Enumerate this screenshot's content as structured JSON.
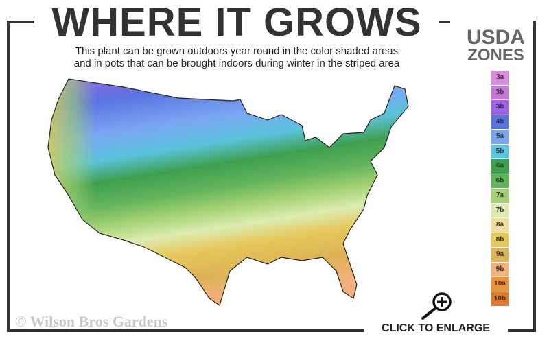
{
  "header": {
    "title": "WHERE IT GROWS",
    "subtitle_line1": "This plant can be grown outdoors year round in the color shaded areas",
    "subtitle_line2": "and in pots that can be brought indoors during winter in the striped area"
  },
  "legend": {
    "title_line1": "USDA",
    "title_line2": "ZONES",
    "zones": [
      {
        "label": "3a",
        "color": "#d98ae0"
      },
      {
        "label": "3b",
        "color": "#c777d6"
      },
      {
        "label": "3b",
        "color": "#9d63e8"
      },
      {
        "label": "4b",
        "color": "#5b74e0"
      },
      {
        "label": "5a",
        "color": "#79a6f2"
      },
      {
        "label": "5b",
        "color": "#5cc3de"
      },
      {
        "label": "6a",
        "color": "#3ea04e"
      },
      {
        "label": "6b",
        "color": "#62b45a"
      },
      {
        "label": "7a",
        "color": "#a3d172"
      },
      {
        "label": "7b",
        "color": "#dcecb0"
      },
      {
        "label": "8a",
        "color": "#efe0a0"
      },
      {
        "label": "8b",
        "color": "#e6c75a"
      },
      {
        "label": "9a",
        "color": "#dcb355"
      },
      {
        "label": "9b",
        "color": "#f2b07c"
      },
      {
        "label": "10a",
        "color": "#ec933c"
      },
      {
        "label": "10b",
        "color": "#e07a2f"
      }
    ]
  },
  "footer": {
    "copyright": "© Wilson Bros Gardens",
    "enlarge_label": "CLICK TO ENLARGE"
  },
  "icons": {
    "enlarge": "magnifier-plus-icon"
  }
}
